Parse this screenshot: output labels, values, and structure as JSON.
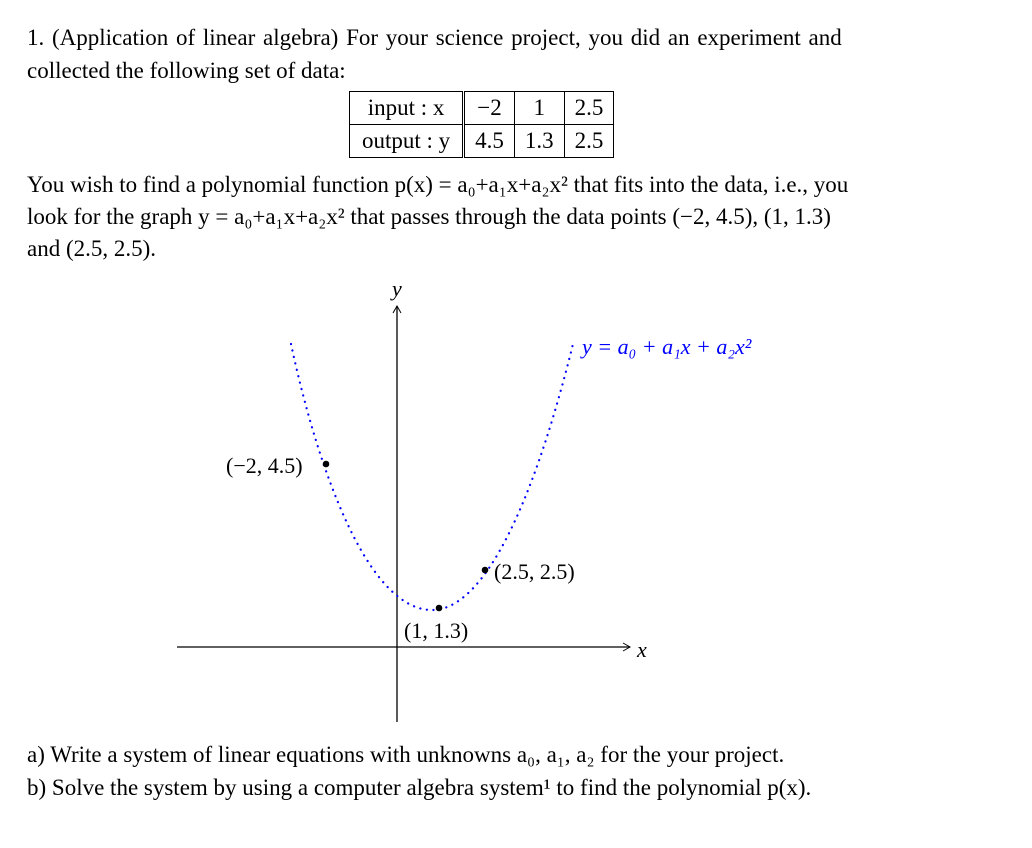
{
  "problem": {
    "line1": "1. (Application of linear algebra) For your science project, you did an experiment and",
    "line2": "collected the following set of data:",
    "table": {
      "rows": [
        {
          "header": "input : x",
          "values": [
            "−2",
            "1",
            "2.5"
          ]
        },
        {
          "header": "output : y",
          "values": [
            "4.5",
            "1.3",
            "2.5"
          ]
        }
      ]
    },
    "para1": "You wish to find a polynomial function p(x) = a₀+a₁x+a₂x² that fits into the data, i.e., you",
    "para2": "look for the graph y = a₀+a₁x+a₂x² that passes through the data points (−2, 4.5), (1, 1.3)",
    "para3": "and (2.5, 2.5).",
    "graph": {
      "y_axis_label": "y",
      "x_axis_label": "x",
      "curve_label": "y = a₀ + a₁x + a₂x²",
      "curve_color": "#0000ff",
      "points": [
        {
          "label": "(−2, 4.5)"
        },
        {
          "label": "(1, 1.3)"
        },
        {
          "label": "(2.5, 2.5)"
        }
      ]
    },
    "part_a": "a)  Write a system of linear equations with unknowns a₀, a₁, a₂ for the your project.",
    "part_b": "b)  Solve the system by using a computer algebra system¹ to find the polynomial p(x)."
  }
}
